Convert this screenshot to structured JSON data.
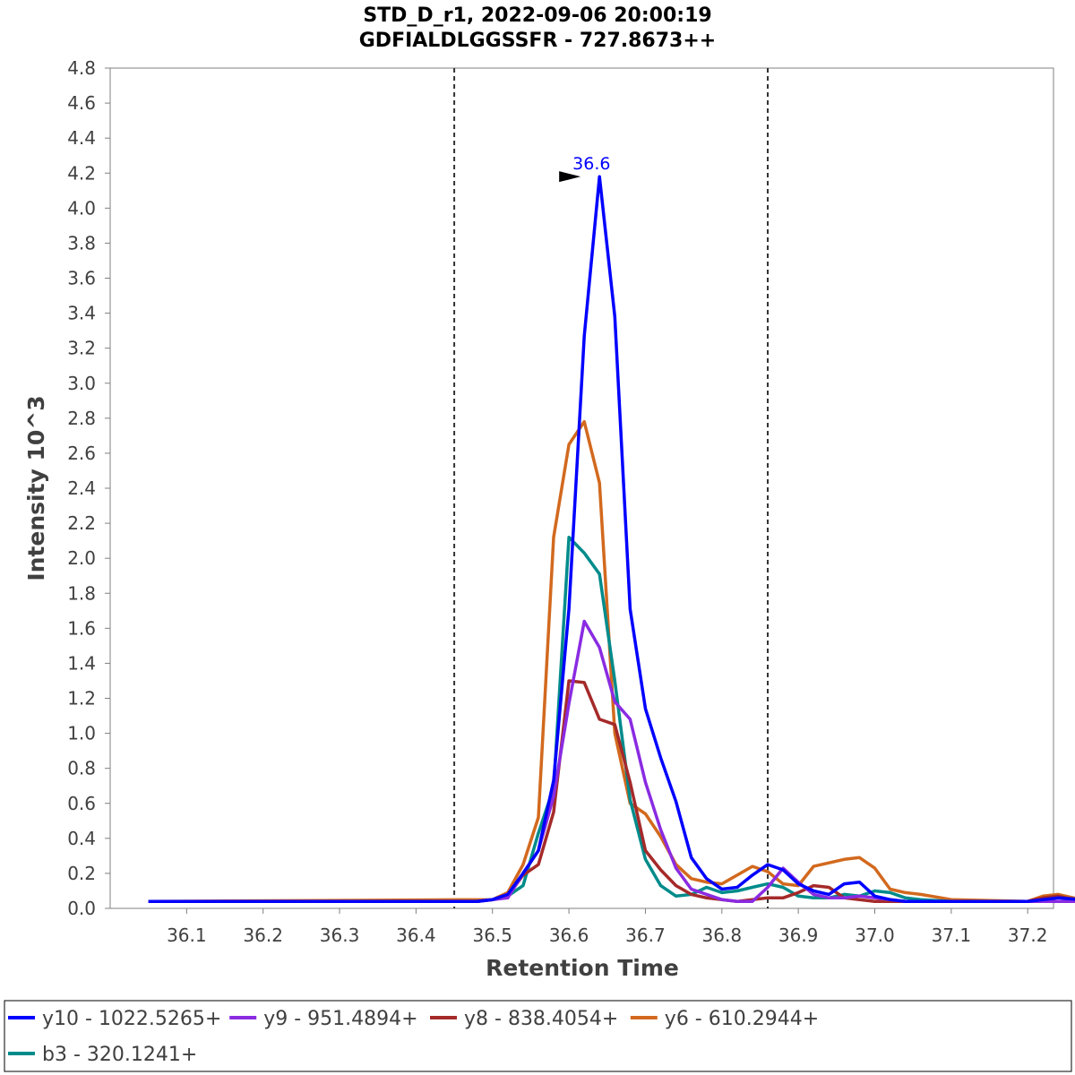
{
  "chart_data": {
    "type": "line",
    "title": "STD_D_r1, 2022-09-06 20:00:19",
    "subtitle": "GDFIALDLGGSSFR - 727.8673++",
    "xlabel": "Retention Time",
    "ylabel": "Intensity 10^3",
    "xlim": [
      36.05,
      37.27
    ],
    "ylim": [
      0.0,
      4.8
    ],
    "xticks": [
      "36.1",
      "36.2",
      "36.3",
      "36.4",
      "36.5",
      "36.6",
      "36.7",
      "36.8",
      "36.9",
      "37.0",
      "37.1",
      "37.2"
    ],
    "yticks": [
      "0.0",
      "0.2",
      "0.4",
      "0.6",
      "0.8",
      "1.0",
      "1.2",
      "1.4",
      "1.6",
      "1.8",
      "2.0",
      "2.2",
      "2.4",
      "2.6",
      "2.8",
      "3.0",
      "3.2",
      "3.4",
      "3.6",
      "3.8",
      "4.0",
      "4.2",
      "4.4",
      "4.6",
      "4.8"
    ],
    "boundaries": [
      36.45,
      36.86
    ],
    "peak_annotation": {
      "label": "36.6",
      "x": 36.62,
      "y": 4.18,
      "color": "#0000ff"
    },
    "legend_position": "bottom",
    "series": [
      {
        "name": "y6 - 610.2944+",
        "color": "#d2691e",
        "x": [
          36.05,
          36.5,
          36.52,
          36.54,
          36.56,
          36.58,
          36.6,
          36.62,
          36.64,
          36.66,
          36.68,
          36.7,
          36.72,
          36.74,
          36.76,
          36.78,
          36.8,
          36.82,
          36.84,
          36.86,
          36.88,
          36.9,
          36.92,
          36.94,
          36.96,
          36.98,
          37.0,
          37.02,
          37.04,
          37.06,
          37.1,
          37.2,
          37.22,
          37.24,
          37.27
        ],
        "y": [
          0.04,
          0.05,
          0.09,
          0.25,
          0.52,
          2.12,
          2.65,
          2.78,
          2.43,
          1.0,
          0.6,
          0.54,
          0.41,
          0.25,
          0.17,
          0.15,
          0.14,
          0.19,
          0.24,
          0.21,
          0.14,
          0.13,
          0.24,
          0.26,
          0.28,
          0.29,
          0.23,
          0.11,
          0.09,
          0.08,
          0.05,
          0.04,
          0.07,
          0.08,
          0.05
        ]
      },
      {
        "name": "b3 - 320.1241+",
        "color": "#008b8b",
        "x": [
          36.05,
          36.48,
          36.5,
          36.52,
          36.54,
          36.56,
          36.58,
          36.6,
          36.62,
          36.64,
          36.66,
          36.68,
          36.7,
          36.72,
          36.74,
          36.76,
          36.78,
          36.8,
          36.82,
          36.84,
          36.86,
          36.88,
          36.9,
          36.92,
          36.94,
          36.96,
          36.98,
          37.0,
          37.02,
          37.04,
          37.06,
          37.1,
          37.2,
          37.22,
          37.24,
          37.27
        ],
        "y": [
          0.04,
          0.04,
          0.05,
          0.07,
          0.13,
          0.43,
          0.69,
          2.12,
          2.03,
          1.91,
          1.3,
          0.62,
          0.28,
          0.13,
          0.07,
          0.08,
          0.12,
          0.09,
          0.1,
          0.12,
          0.14,
          0.12,
          0.07,
          0.06,
          0.06,
          0.08,
          0.07,
          0.1,
          0.09,
          0.06,
          0.05,
          0.04,
          0.04,
          0.04,
          0.04,
          0.04
        ]
      },
      {
        "name": "y8 - 838.4054+",
        "color": "#a52a2a",
        "x": [
          36.05,
          36.48,
          36.5,
          36.52,
          36.54,
          36.56,
          36.58,
          36.6,
          36.62,
          36.64,
          36.66,
          36.68,
          36.7,
          36.72,
          36.74,
          36.76,
          36.78,
          36.8,
          36.82,
          36.84,
          36.86,
          36.88,
          36.9,
          36.92,
          36.94,
          36.96,
          36.98,
          37.0,
          37.02,
          37.04,
          37.06,
          37.1,
          37.2,
          37.22,
          37.24,
          37.27
        ],
        "y": [
          0.04,
          0.04,
          0.05,
          0.07,
          0.19,
          0.25,
          0.55,
          1.3,
          1.29,
          1.08,
          1.05,
          0.72,
          0.33,
          0.22,
          0.13,
          0.08,
          0.06,
          0.05,
          0.04,
          0.05,
          0.06,
          0.06,
          0.09,
          0.13,
          0.12,
          0.06,
          0.05,
          0.04,
          0.04,
          0.04,
          0.04,
          0.04,
          0.04,
          0.06,
          0.07,
          0.04
        ]
      },
      {
        "name": "y9 - 951.4894+",
        "color": "#8a2be2",
        "x": [
          36.05,
          36.48,
          36.5,
          36.52,
          36.54,
          36.56,
          36.58,
          36.6,
          36.62,
          36.64,
          36.66,
          36.68,
          36.7,
          36.72,
          36.74,
          36.76,
          36.78,
          36.8,
          36.82,
          36.84,
          36.86,
          36.88,
          36.9,
          36.92,
          36.94,
          36.96,
          36.98,
          37.0,
          37.02,
          37.04,
          37.06,
          37.1,
          37.2,
          37.22,
          37.24,
          37.27
        ],
        "y": [
          0.04,
          0.04,
          0.05,
          0.06,
          0.2,
          0.33,
          0.64,
          1.17,
          1.64,
          1.49,
          1.18,
          1.08,
          0.72,
          0.45,
          0.23,
          0.11,
          0.08,
          0.05,
          0.04,
          0.04,
          0.12,
          0.23,
          0.15,
          0.08,
          0.06,
          0.06,
          0.07,
          0.06,
          0.05,
          0.04,
          0.04,
          0.04,
          0.04,
          0.04,
          0.04,
          0.04
        ]
      },
      {
        "name": "y10 - 1022.5265+",
        "color": "#0000ff",
        "x": [
          36.05,
          36.48,
          36.5,
          36.52,
          36.54,
          36.56,
          36.58,
          36.6,
          36.62,
          36.64,
          36.66,
          36.68,
          36.7,
          36.72,
          36.74,
          36.76,
          36.78,
          36.8,
          36.82,
          36.84,
          36.86,
          36.88,
          36.9,
          36.92,
          36.94,
          36.96,
          36.98,
          37.0,
          37.02,
          37.04,
          37.06,
          37.1,
          37.2,
          37.22,
          37.24,
          37.27
        ],
        "y": [
          0.04,
          0.04,
          0.05,
          0.08,
          0.2,
          0.33,
          0.73,
          1.71,
          3.27,
          4.18,
          3.38,
          1.71,
          1.14,
          0.86,
          0.61,
          0.29,
          0.17,
          0.11,
          0.12,
          0.19,
          0.25,
          0.22,
          0.14,
          0.1,
          0.08,
          0.14,
          0.15,
          0.07,
          0.05,
          0.04,
          0.04,
          0.04,
          0.04,
          0.05,
          0.06,
          0.05
        ]
      }
    ],
    "legend_order": [
      [
        "y10 - 1022.5265+",
        "y9 - 951.4894+",
        "y8 - 838.4054+",
        "y6 - 610.2944+"
      ],
      [
        "b3 - 320.1241+"
      ]
    ]
  }
}
